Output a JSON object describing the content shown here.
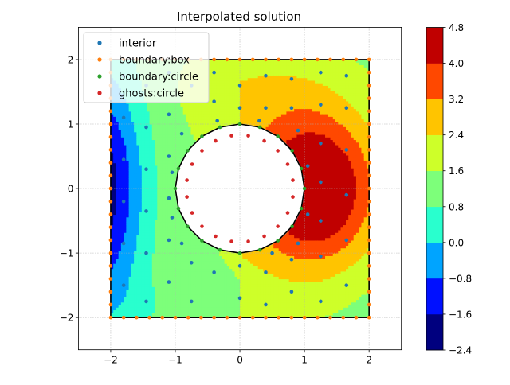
{
  "chart_data": {
    "type": "contour",
    "title": "Interpolated solution",
    "xlabel": "",
    "ylabel": "",
    "xlim": [
      -2.5,
      2.5
    ],
    "ylim": [
      -2.5,
      2.5
    ],
    "x_ticks": [
      -2,
      -1,
      0,
      1,
      2
    ],
    "y_ticks": [
      -2,
      -1,
      0,
      1,
      2
    ],
    "x_tick_labels": [
      "−2",
      "−1",
      "0",
      "1",
      "2"
    ],
    "y_tick_labels": [
      "−2",
      "−1",
      "0",
      "1",
      "2"
    ],
    "grid": true,
    "legend_position": "top-left",
    "domain": {
      "box": [
        -2,
        2,
        -2,
        2
      ],
      "hole_center": [
        0,
        0
      ],
      "hole_radius": 1
    },
    "colorbar": {
      "levels": [
        -2.4,
        -1.6,
        -0.8,
        0.0,
        0.8,
        1.6,
        2.4,
        3.2,
        4.0,
        4.8
      ],
      "tick_labels": [
        "−2.4",
        "−1.6",
        "−0.8",
        "0.0",
        "0.8",
        "1.6",
        "2.4",
        "3.2",
        "4.0",
        "4.8"
      ],
      "colors": [
        "#00007f",
        "#0010ff",
        "#00a4ff",
        "#29ffce",
        "#7dff7a",
        "#ceff29",
        "#ffc400",
        "#ff4800",
        "#c00000"
      ]
    },
    "series": [
      {
        "name": "interior",
        "color": "#1f77b4",
        "points": [
          [
            -1.8,
            1.75
          ],
          [
            -1.8,
            1.1
          ],
          [
            -1.8,
            0.45
          ],
          [
            -1.8,
            -0.2
          ],
          [
            -1.8,
            -0.85
          ],
          [
            -1.8,
            -1.5
          ],
          [
            -1.45,
            1.6
          ],
          [
            -1.45,
            0.95
          ],
          [
            -1.45,
            0.3
          ],
          [
            -1.45,
            -0.35
          ],
          [
            -1.45,
            -1.0
          ],
          [
            -1.45,
            -1.75
          ],
          [
            -1.1,
            1.8
          ],
          [
            -1.1,
            1.15
          ],
          [
            -1.1,
            0.5
          ],
          [
            -1.1,
            -0.15
          ],
          [
            -1.1,
            -0.8
          ],
          [
            -1.1,
            -1.45
          ],
          [
            -0.75,
            1.6
          ],
          [
            -0.75,
            -1.15
          ],
          [
            -0.75,
            -1.75
          ],
          [
            -0.4,
            1.8
          ],
          [
            -0.4,
            1.35
          ],
          [
            -0.4,
            -1.3
          ],
          [
            0.0,
            1.6
          ],
          [
            0.0,
            1.25
          ],
          [
            0.0,
            -1.2
          ],
          [
            0.0,
            -1.7
          ],
          [
            0.4,
            1.75
          ],
          [
            0.4,
            1.25
          ],
          [
            0.4,
            -1.3
          ],
          [
            0.4,
            -1.8
          ],
          [
            0.8,
            1.7
          ],
          [
            0.8,
            1.25
          ],
          [
            0.8,
            -1.1
          ],
          [
            0.8,
            -1.6
          ],
          [
            1.25,
            1.8
          ],
          [
            1.25,
            1.3
          ],
          [
            1.25,
            0.7
          ],
          [
            1.25,
            0.1
          ],
          [
            1.25,
            -0.5
          ],
          [
            1.25,
            -1.05
          ],
          [
            1.25,
            -1.75
          ],
          [
            1.65,
            1.75
          ],
          [
            1.65,
            1.25
          ],
          [
            1.65,
            0.6
          ],
          [
            1.65,
            -0.1
          ],
          [
            1.65,
            -0.8
          ],
          [
            1.65,
            -1.5
          ],
          [
            -0.9,
            0.85
          ],
          [
            -0.9,
            -0.85
          ],
          [
            0.9,
            0.9
          ],
          [
            0.9,
            -0.85
          ],
          [
            1.05,
            0.35
          ],
          [
            1.05,
            -0.4
          ],
          [
            -1.05,
            0.25
          ],
          [
            -1.05,
            -0.45
          ],
          [
            0.3,
            1.05
          ],
          [
            -0.35,
            1.05
          ],
          [
            0.5,
            -1.0
          ]
        ]
      },
      {
        "name": "boundary:box",
        "color": "#ff7f0e"
      },
      {
        "name": "boundary:circle",
        "color": "#2ca02c"
      },
      {
        "name": "ghosts:circle",
        "color": "#d62728"
      }
    ]
  }
}
